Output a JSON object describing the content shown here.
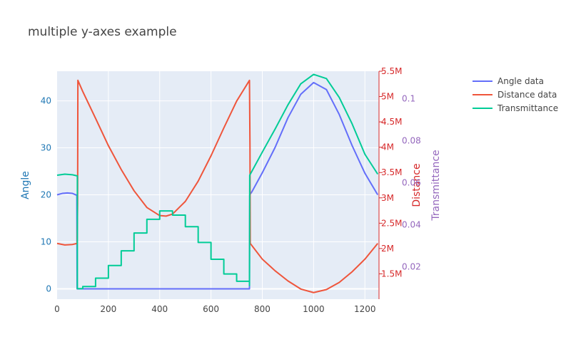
{
  "chart_data": {
    "type": "line",
    "title": "multiple y-axes example",
    "xlim": [
      0,
      1255
    ],
    "x_ticks": [
      0,
      200,
      400,
      600,
      800,
      1000,
      1200
    ],
    "y_axes": [
      {
        "label": "Angle",
        "color": "#1f77b4",
        "range": [
          -2.2,
          46.3
        ],
        "ticks": [
          0,
          10,
          20,
          30,
          40
        ]
      },
      {
        "label": "Distance",
        "color": "#d62728",
        "range": [
          1000000,
          5500000
        ],
        "ticks": [
          1500000,
          2000000,
          2500000,
          3000000,
          3500000,
          4000000,
          4500000,
          5000000,
          5500000
        ],
        "tick_labels": [
          "1.5M",
          "2M",
          "2.5M",
          "3M",
          "3.5M",
          "4M",
          "4.5M",
          "5M",
          "5.5M"
        ]
      },
      {
        "label": "Transmittance",
        "color": "#9467bd",
        "range": [
          0.0045,
          0.113
        ],
        "ticks": [
          0.02,
          0.04,
          0.06,
          0.08,
          0.1
        ],
        "tick_labels": [
          "0.02",
          "0.04",
          "0.06",
          "0.08",
          "0.1"
        ]
      }
    ],
    "legend_position": "top-right",
    "series": [
      {
        "name": "Angle data",
        "color": "#636efa",
        "axis": 0,
        "x": [
          0,
          20,
          40,
          60,
          77,
          78,
          100,
          200,
          300,
          400,
          500,
          600,
          700,
          750,
          751,
          760,
          800,
          850,
          900,
          950,
          1000,
          1050,
          1100,
          1150,
          1200,
          1250
        ],
        "y": [
          20,
          20.3,
          20.4,
          20.3,
          19.9,
          0,
          0,
          0,
          0,
          0,
          0,
          0,
          0,
          0,
          20,
          20.7,
          24.7,
          30.1,
          36.4,
          41.4,
          43.9,
          42.4,
          37.1,
          30.5,
          24.6,
          20
        ]
      },
      {
        "name": "Distance data",
        "color": "#ef553b",
        "axis": 1,
        "x": [
          0,
          30,
          60,
          78,
          80,
          81,
          100,
          150,
          200,
          250,
          300,
          350,
          400,
          425,
          450,
          500,
          550,
          600,
          650,
          700,
          750,
          752,
          753,
          800,
          850,
          900,
          950,
          1000,
          1050,
          1100,
          1150,
          1200,
          1250
        ],
        "y": [
          2100000,
          2070000,
          2080000,
          2100000,
          2900000,
          5320000,
          5100000,
          4570000,
          4030000,
          3560000,
          3140000,
          2810000,
          2650000,
          2640000,
          2680000,
          2930000,
          3330000,
          3830000,
          4380000,
          4910000,
          5320000,
          4000000,
          2100000,
          1790000,
          1560000,
          1360000,
          1200000,
          1130000,
          1190000,
          1330000,
          1540000,
          1790000,
          2100000
        ]
      },
      {
        "name": "Transmittance",
        "color": "#00cc96",
        "axis": 2,
        "x": [
          0,
          30,
          60,
          78,
          79,
          100,
          150,
          200,
          250,
          300,
          350,
          400,
          425,
          450,
          500,
          550,
          600,
          650,
          700,
          750,
          751,
          800,
          850,
          900,
          950,
          1000,
          1050,
          1100,
          1150,
          1200,
          1250
        ],
        "y": [
          0.0635,
          0.064,
          0.0637,
          0.0632,
          0.0095,
          0.0105,
          0.0145,
          0.0205,
          0.0275,
          0.036,
          0.0425,
          0.0465,
          0.0465,
          0.0445,
          0.039,
          0.0315,
          0.0235,
          0.0165,
          0.013,
          0.011,
          0.0635,
          0.0745,
          0.0855,
          0.097,
          0.107,
          0.1115,
          0.1095,
          0.1005,
          0.088,
          0.0735,
          0.064
        ]
      }
    ]
  }
}
